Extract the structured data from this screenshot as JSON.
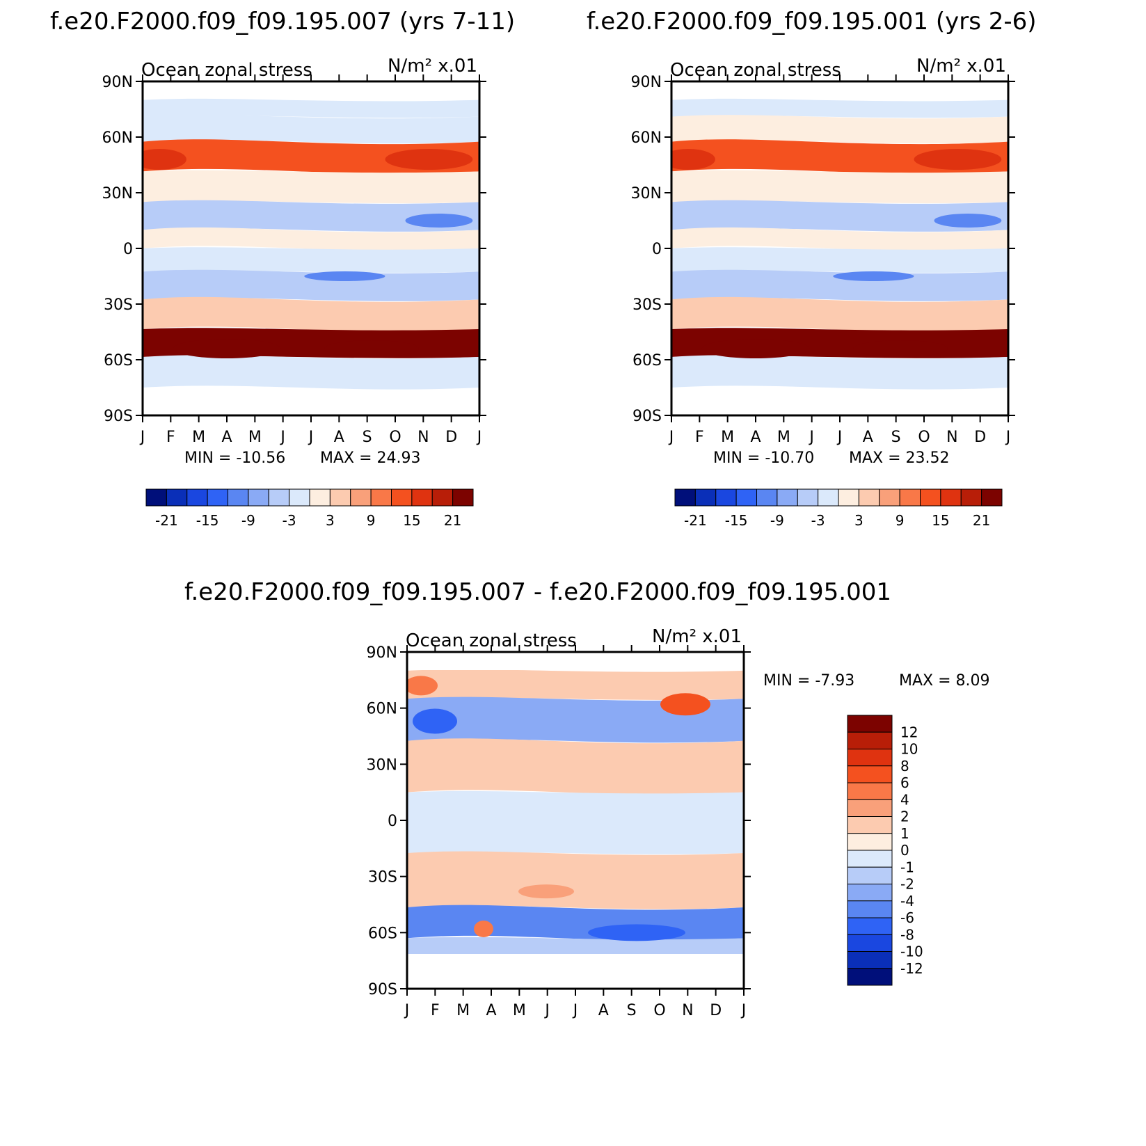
{
  "titles": {
    "panel1": "f.e20.F2000.f09_f09.195.007 (yrs 7-11)",
    "panel2": "f.e20.F2000.f09_f09.195.001 (yrs 2-6)",
    "panel3": "f.e20.F2000.f09_f09.195.007 - f.e20.F2000.f09_f09.195.001"
  },
  "chart_data": [
    {
      "type": "heatmap",
      "title": "f.e20.F2000.f09_f09.195.007 (yrs 7-11)",
      "subtitle": "Ocean zonal stress",
      "units": "N/m² x.01",
      "x_ticks": [
        "J",
        "F",
        "M",
        "A",
        "M",
        "J",
        "J",
        "A",
        "S",
        "O",
        "N",
        "D",
        "J"
      ],
      "y_ticks": [
        "90N",
        "60N",
        "30N",
        "0",
        "30S",
        "60S",
        "90S"
      ],
      "ylim": [
        -90,
        90
      ],
      "min_label": "MIN = -10.56",
      "max_label": "MAX = 24.93",
      "colorbar": {
        "labels": [
          "-21",
          "-15",
          "-9",
          "-3",
          "3",
          "9",
          "15",
          "21"
        ],
        "colors": [
          "#000f7a",
          "#0a2fb8",
          "#1a47e0",
          "#2f63f5",
          "#5a86f2",
          "#8aaaf5",
          "#b7ccf8",
          "#dbe9fb",
          "#fdeee0",
          "#fccbb0",
          "#f9a07a",
          "#f97848",
          "#f4511f",
          "#df3310",
          "#b81e08",
          "#7c0300"
        ]
      },
      "bands": [
        {
          "lat": 75,
          "value": -1
        },
        {
          "lat": 67,
          "value": -1
        },
        {
          "lat": 48,
          "value": 12
        },
        {
          "lat": 35,
          "value": 2
        },
        {
          "lat": 15,
          "value": -6
        },
        {
          "lat": 5,
          "value": 1
        },
        {
          "lat": -5,
          "value": -1
        },
        {
          "lat": -20,
          "value": -6
        },
        {
          "lat": -35,
          "value": 4
        },
        {
          "lat": -52,
          "value": 22
        },
        {
          "lat": -65,
          "value": -1
        }
      ]
    },
    {
      "type": "heatmap",
      "title": "f.e20.F2000.f09_f09.195.001 (yrs 2-6)",
      "subtitle": "Ocean zonal stress",
      "units": "N/m² x.01",
      "x_ticks": [
        "J",
        "F",
        "M",
        "A",
        "M",
        "J",
        "J",
        "A",
        "S",
        "O",
        "N",
        "D",
        "J"
      ],
      "y_ticks": [
        "90N",
        "60N",
        "30N",
        "0",
        "30S",
        "60S",
        "90S"
      ],
      "ylim": [
        -90,
        90
      ],
      "min_label": "MIN = -10.70",
      "max_label": "MAX = 23.52",
      "colorbar": {
        "labels": [
          "-21",
          "-15",
          "-9",
          "-3",
          "3",
          "9",
          "15",
          "21"
        ],
        "colors": [
          "#000f7a",
          "#0a2fb8",
          "#1a47e0",
          "#2f63f5",
          "#5a86f2",
          "#8aaaf5",
          "#b7ccf8",
          "#dbe9fb",
          "#fdeee0",
          "#fccbb0",
          "#f9a07a",
          "#f97848",
          "#f4511f",
          "#df3310",
          "#b81e08",
          "#7c0300"
        ]
      },
      "bands": [
        {
          "lat": 75,
          "value": -1
        },
        {
          "lat": 67,
          "value": 1
        },
        {
          "lat": 48,
          "value": 12
        },
        {
          "lat": 35,
          "value": 2
        },
        {
          "lat": 15,
          "value": -6
        },
        {
          "lat": 5,
          "value": 1
        },
        {
          "lat": -5,
          "value": -1
        },
        {
          "lat": -20,
          "value": -6
        },
        {
          "lat": -35,
          "value": 4
        },
        {
          "lat": -52,
          "value": 21
        },
        {
          "lat": -65,
          "value": -1
        }
      ]
    },
    {
      "type": "heatmap",
      "title": "f.e20.F2000.f09_f09.195.007 - f.e20.F2000.f09_f09.195.001",
      "subtitle": "Ocean zonal stress",
      "units": "N/m² x.01",
      "x_ticks": [
        "J",
        "F",
        "M",
        "A",
        "M",
        "J",
        "J",
        "A",
        "S",
        "O",
        "N",
        "D",
        "J"
      ],
      "y_ticks": [
        "90N",
        "60N",
        "30N",
        "0",
        "30S",
        "60S",
        "90S"
      ],
      "ylim": [
        -90,
        90
      ],
      "min_label": "MIN = -7.93",
      "max_label": "MAX = 8.09",
      "colorbar": {
        "labels": [
          "12",
          "10",
          "8",
          "6",
          "4",
          "2",
          "1",
          "0",
          "-1",
          "-2",
          "-4",
          "-6",
          "-8",
          "-10",
          "-12"
        ],
        "colors": [
          "#7c0300",
          "#b81e08",
          "#df3310",
          "#f4511f",
          "#f97848",
          "#f9a07a",
          "#fccbb0",
          "#fdeee0",
          "#dbe9fb",
          "#b7ccf8",
          "#8aaaf5",
          "#5a86f2",
          "#2f63f5",
          "#1a47e0",
          "#0a2fb8",
          "#000f7a"
        ]
      },
      "bands": [
        {
          "lat": 75,
          "value": 1
        },
        {
          "lat": 55,
          "value": -3
        },
        {
          "lat": 30,
          "value": 1
        },
        {
          "lat": 0,
          "value": -1
        },
        {
          "lat": -35,
          "value": 1
        },
        {
          "lat": -58,
          "value": -5
        },
        {
          "lat": -68,
          "value": -2
        }
      ]
    }
  ]
}
